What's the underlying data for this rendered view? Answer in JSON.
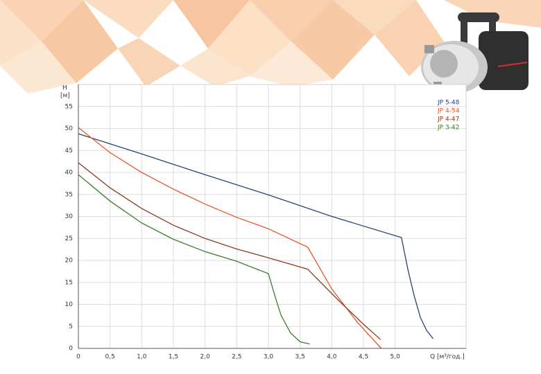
{
  "chart_data": {
    "type": "line",
    "ylabel": "H",
    "yunit": "[м]",
    "xlabel": "Q [м³/год.]",
    "xlim": [
      0,
      6.12
    ],
    "ylim": [
      0,
      60
    ],
    "xticks": [
      0,
      {
        "value": 0.5,
        "label": "0,5"
      },
      {
        "value": 1,
        "label": "1,0"
      },
      {
        "value": 1.5,
        "label": "1,5"
      },
      {
        "value": 2,
        "label": "2,0"
      },
      {
        "value": 2.5,
        "label": "2,5"
      },
      {
        "value": 3,
        "label": "3,0"
      },
      {
        "value": 3.5,
        "label": "3,5"
      },
      {
        "value": 4,
        "label": "4,0"
      },
      {
        "value": 4.5,
        "label": "4,5"
      },
      {
        "value": 5,
        "label": "5,0"
      }
    ],
    "yticks": [
      0,
      5,
      10,
      15,
      20,
      25,
      30,
      35,
      40,
      45,
      50,
      55
    ],
    "grid": true,
    "series": [
      {
        "name": "JP 5-48",
        "color": "#2b3f78",
        "x": [
          0,
          1,
          2,
          3,
          4,
          5.1,
          5.2,
          5.3,
          5.4,
          5.5,
          5.6
        ],
        "values": [
          48.8,
          44.2,
          39.5,
          34.9,
          30,
          25.2,
          18,
          12,
          7,
          4,
          2.2
        ]
      },
      {
        "name": "JP 4-54",
        "color": "#e8542a",
        "x": [
          0,
          0.5,
          1,
          1.5,
          2,
          2.5,
          3,
          3.62,
          4.0,
          4.4,
          4.78
        ],
        "values": [
          50.2,
          44.5,
          40,
          36.2,
          32.8,
          29.8,
          27.2,
          23,
          13.5,
          6,
          0
        ]
      },
      {
        "name": "JP 4-47",
        "color": "#8b3a1e",
        "x": [
          0,
          0.5,
          1,
          1.5,
          2,
          2.5,
          3,
          3.62,
          4.1,
          4.5,
          4.77
        ],
        "values": [
          42.2,
          36.5,
          31.8,
          28,
          25,
          22.6,
          20.6,
          18,
          11,
          5.5,
          2
        ]
      },
      {
        "name": "JP 3-42",
        "color": "#3a7a2a",
        "x": [
          0,
          0.5,
          1,
          1.5,
          2,
          2.5,
          3.0,
          3.1,
          3.2,
          3.35,
          3.5,
          3.65
        ],
        "values": [
          39.5,
          33.5,
          28.5,
          24.8,
          22,
          19.8,
          17,
          12,
          7.5,
          3.5,
          1.5,
          1
        ]
      }
    ]
  }
}
